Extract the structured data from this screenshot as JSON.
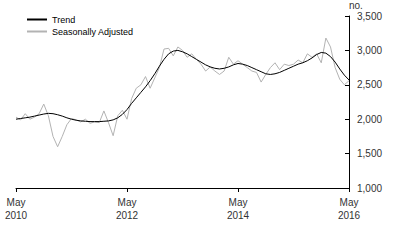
{
  "chart_data": {
    "type": "line",
    "ylabel": "no.",
    "categories": [
      "May 2010",
      null,
      null,
      null,
      null,
      null,
      null,
      null,
      null,
      null,
      null,
      null,
      null,
      null,
      null,
      null,
      null,
      null,
      null,
      null,
      null,
      null,
      null,
      null,
      "May 2012",
      null,
      null,
      null,
      null,
      null,
      null,
      null,
      null,
      null,
      null,
      null,
      null,
      null,
      null,
      null,
      null,
      null,
      null,
      null,
      null,
      null,
      null,
      null,
      "May 2014",
      null,
      null,
      null,
      null,
      null,
      null,
      null,
      null,
      null,
      null,
      null,
      null,
      null,
      null,
      null,
      null,
      null,
      null,
      null,
      null,
      null,
      null,
      null,
      "May 2016"
    ],
    "series": [
      {
        "name": "Trend",
        "color": "#000000",
        "values": [
          2000,
          2010,
          2020,
          2030,
          2045,
          2060,
          2075,
          2085,
          2080,
          2065,
          2045,
          2020,
          2000,
          1985,
          1975,
          1970,
          1965,
          1965,
          1965,
          1970,
          1975,
          1990,
          2020,
          2070,
          2140,
          2230,
          2310,
          2390,
          2470,
          2560,
          2660,
          2770,
          2870,
          2950,
          2990,
          3000,
          2980,
          2950,
          2910,
          2870,
          2830,
          2790,
          2760,
          2740,
          2730,
          2740,
          2760,
          2790,
          2810,
          2800,
          2780,
          2750,
          2720,
          2690,
          2660,
          2650,
          2660,
          2680,
          2710,
          2740,
          2770,
          2800,
          2820,
          2850,
          2890,
          2940,
          2970,
          2960,
          2910,
          2830,
          2730,
          2640,
          2570
        ]
      },
      {
        "name": "Seasonally Adjusted",
        "color": "#b3b3b3",
        "values": [
          2030,
          1990,
          2080,
          2000,
          2030,
          2080,
          2220,
          2050,
          1750,
          1600,
          1750,
          1920,
          2010,
          1990,
          1960,
          2000,
          1940,
          1960,
          1950,
          2120,
          1950,
          1760,
          2050,
          2130,
          2000,
          2300,
          2450,
          2500,
          2620,
          2450,
          2600,
          2750,
          3020,
          3030,
          2920,
          3050,
          3000,
          2900,
          2950,
          2870,
          2800,
          2700,
          2760,
          2700,
          2650,
          2700,
          2900,
          2800,
          2850,
          2800,
          2750,
          2700,
          2680,
          2540,
          2650,
          2750,
          2820,
          2720,
          2800,
          2780,
          2800,
          2860,
          2820,
          2950,
          2900,
          2950,
          2820,
          3180,
          3050,
          2750,
          2580,
          2500,
          2560
        ]
      }
    ],
    "ylim": [
      1000,
      3500
    ],
    "yticks": [
      1000,
      1500,
      2000,
      2500,
      3000,
      3500
    ],
    "grid": false,
    "legend": "top-left"
  }
}
